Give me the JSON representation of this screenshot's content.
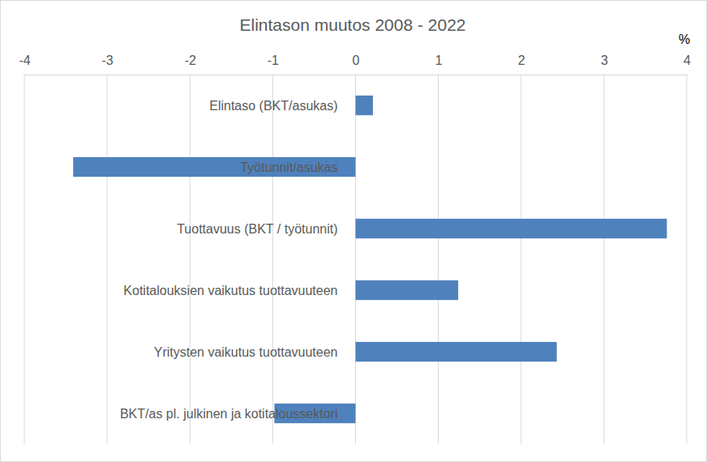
{
  "chart_data": {
    "type": "bar",
    "title": "Elintason muutos 2008 - 2022",
    "xlabel": "%",
    "orientation": "horizontal",
    "categories": [
      "Elintaso (BKT/asukas)",
      "Työtunnit/asukas",
      "Tuottavuus (BKT / työtunnit)",
      "Kotitalouksien vaikutus tuottavuuteen",
      "Yritysten vaikutus tuottavuuteen",
      "BKT/as pl. julkinen ja kotitaloussektori"
    ],
    "values": [
      0.21,
      -3.41,
      3.76,
      1.24,
      2.43,
      -0.98
    ],
    "color": "#4f81bd",
    "xlim": [
      -4,
      4
    ],
    "xticks": [
      -4,
      -3,
      -2,
      -1,
      0,
      1,
      2,
      3,
      4
    ],
    "grid": true
  }
}
